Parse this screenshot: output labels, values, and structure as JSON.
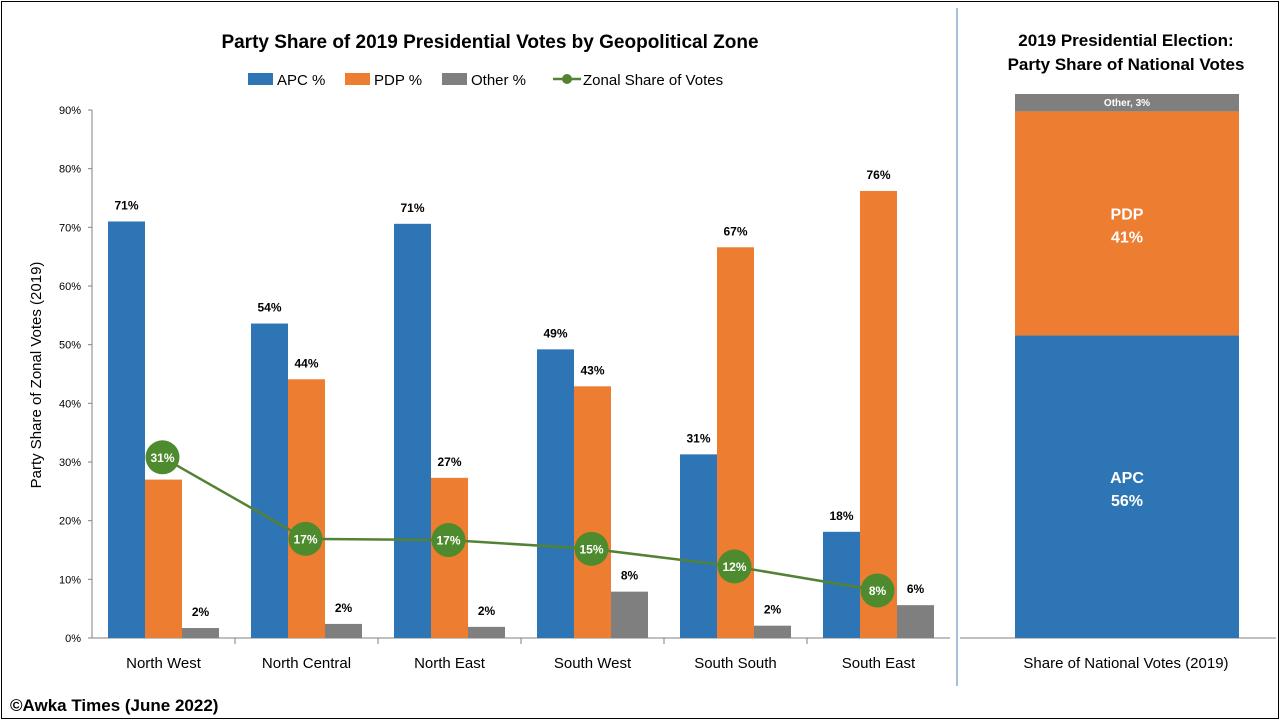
{
  "colors": {
    "apc": "#2E75B6",
    "pdp": "#ED7D31",
    "other": "#7F7F7F",
    "zonal_line": "#548235",
    "zonal_marker": "#4E8A2E",
    "divider": "#4F81BD"
  },
  "credit": "©Awka Times (June 2022)",
  "chart_data": [
    {
      "type": "bar",
      "title": "Party Share of 2019 Presidential Votes by Geopolitical Zone",
      "ylabel": "Party Share of Zonal Votes (2019)",
      "xlabel": "",
      "ylim": [
        0,
        90
      ],
      "yticks": [
        "0%",
        "10%",
        "20%",
        "30%",
        "40%",
        "50%",
        "60%",
        "70%",
        "80%",
        "90%"
      ],
      "grid": false,
      "legend_position": "top",
      "categories": [
        "North West",
        "North Central",
        "North East",
        "South West",
        "South South",
        "South East"
      ],
      "series": [
        {
          "name": "APC %",
          "kind": "bar",
          "values": [
            71.0,
            53.6,
            70.6,
            49.2,
            31.3,
            18.1
          ],
          "labels": [
            "71%",
            "54%",
            "71%",
            "49%",
            "31%",
            "18%"
          ]
        },
        {
          "name": "PDP %",
          "kind": "bar",
          "values": [
            27.0,
            44.1,
            27.3,
            42.9,
            66.6,
            76.2
          ],
          "labels": [
            "27%",
            "44%",
            "27%",
            "43%",
            "67%",
            "76%"
          ]
        },
        {
          "name": "Other %",
          "kind": "bar",
          "values": [
            1.7,
            2.4,
            1.9,
            7.9,
            2.1,
            5.6
          ],
          "labels": [
            "2%",
            "2%",
            "2%",
            "8%",
            "2%",
            "6%"
          ]
        },
        {
          "name": "Zonal Share of Votes",
          "kind": "line",
          "values": [
            30.8,
            16.9,
            16.7,
            15.2,
            12.2,
            8.1
          ],
          "labels": [
            "31%",
            "17%",
            "17%",
            "15%",
            "12%",
            "8%"
          ]
        }
      ]
    },
    {
      "type": "bar",
      "stacked": true,
      "title_lines": [
        "2019 Presidential Election:",
        "Party Share of National Votes"
      ],
      "categories": [
        "Share of National Votes (2019)"
      ],
      "ylim": [
        0,
        100
      ],
      "segments": [
        {
          "name": "APC",
          "value": 55.6,
          "label": "56%"
        },
        {
          "name": "PDP",
          "value": 41.2,
          "label": "41%"
        },
        {
          "name": "Other",
          "value": 3.2,
          "label": "Other, 3%"
        }
      ]
    }
  ]
}
